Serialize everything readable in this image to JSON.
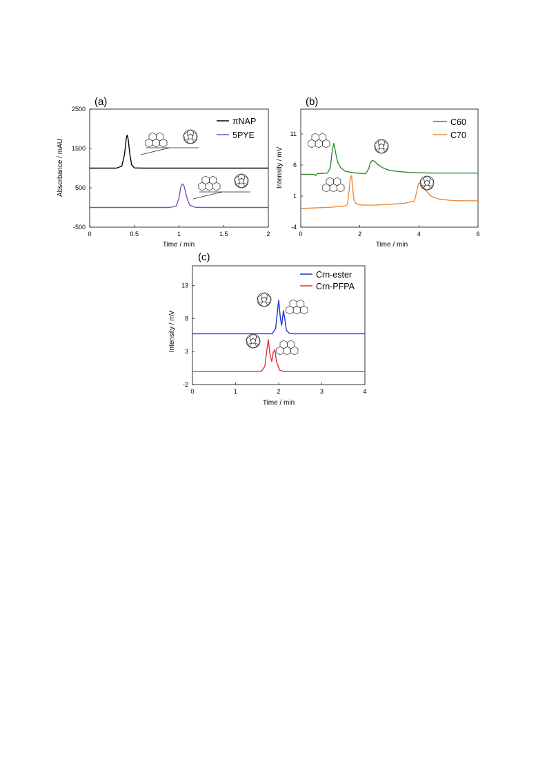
{
  "chart_data": [
    {
      "id": "a",
      "type": "line",
      "panel_label": "(a)",
      "xlabel": "Time / min",
      "ylabel": "Absorbance / mAU",
      "xlim": [
        0,
        2
      ],
      "ylim": [
        -500,
        2500
      ],
      "x_ticks": [
        0,
        0.5,
        1,
        1.5,
        2
      ],
      "y_ticks": [
        -500,
        500,
        1500,
        2500
      ],
      "legend_position": "top-right",
      "grid": false,
      "series": [
        {
          "name": "πNAP",
          "color": "#000000",
          "x": [
            0,
            0.3,
            0.36,
            0.39,
            0.41,
            0.42,
            0.43,
            0.45,
            0.47,
            0.5,
            0.6,
            2.0
          ],
          "y": [
            1000,
            1000,
            1050,
            1350,
            1760,
            1840,
            1750,
            1350,
            1080,
            1005,
            1000,
            1000
          ]
        },
        {
          "name": "5PYE",
          "color": "#7e4fb0",
          "x": [
            0,
            0.9,
            0.97,
            1.0,
            1.02,
            1.04,
            1.06,
            1.09,
            1.12,
            1.18,
            1.3,
            2.0
          ],
          "y": [
            0,
            0,
            40,
            250,
            530,
            600,
            520,
            230,
            60,
            5,
            0,
            0
          ]
        }
      ]
    },
    {
      "id": "b",
      "type": "line",
      "panel_label": "(b)",
      "xlabel": "Time / min",
      "ylabel": "Intensity / mV",
      "xlim": [
        0,
        6
      ],
      "ylim": [
        -4,
        15
      ],
      "x_ticks": [
        0,
        2,
        4,
        6
      ],
      "y_ticks": [
        -4,
        1,
        6,
        11
      ],
      "legend_position": "top-right",
      "grid": false,
      "series": [
        {
          "name": "C60",
          "color": "#2e8b2e",
          "x": [
            0,
            0.45,
            0.5,
            0.55,
            0.9,
            1.0,
            1.07,
            1.12,
            1.18,
            1.25,
            1.35,
            1.5,
            1.8,
            2.2,
            2.3,
            2.35,
            2.42,
            2.5,
            2.6,
            2.8,
            3.0,
            3.3,
            3.7,
            4.5,
            6.0
          ],
          "y": [
            4.5,
            4.5,
            4.3,
            4.6,
            4.7,
            5.5,
            8.5,
            9.5,
            8.0,
            6.5,
            5.6,
            5.0,
            4.75,
            4.6,
            5.4,
            6.3,
            6.75,
            6.6,
            6.1,
            5.5,
            5.15,
            4.95,
            4.8,
            4.7,
            4.7
          ]
        },
        {
          "name": "C70",
          "color": "#e98a3c",
          "x": [
            0,
            1.0,
            1.5,
            1.58,
            1.64,
            1.68,
            1.72,
            1.75,
            1.8,
            1.85,
            1.95,
            2.1,
            2.5,
            3.0,
            3.5,
            3.85,
            3.93,
            3.98,
            4.05,
            4.2,
            4.4,
            4.7,
            5.1,
            5.5,
            6.0
          ],
          "y": [
            -1.0,
            -0.8,
            -0.6,
            -0.3,
            2.0,
            4.1,
            4.3,
            2.5,
            0.5,
            -0.1,
            -0.35,
            -0.45,
            -0.45,
            -0.35,
            -0.15,
            0.2,
            1.8,
            3.0,
            3.1,
            2.1,
            1.0,
            0.5,
            0.3,
            0.25,
            0.25
          ]
        }
      ]
    },
    {
      "id": "c",
      "type": "line",
      "panel_label": "(c)",
      "xlabel": "Time / min",
      "ylabel": "Intensity / mV",
      "xlim": [
        0,
        4
      ],
      "ylim": [
        -2,
        16
      ],
      "x_ticks": [
        0,
        1,
        2,
        3,
        4
      ],
      "y_ticks": [
        -2,
        3,
        8,
        13
      ],
      "legend_position": "top-right",
      "grid": false,
      "series": [
        {
          "name": "Crn-ester",
          "color": "#1f2fd6",
          "x": [
            0,
            1.85,
            1.93,
            1.97,
            2.0,
            2.04,
            2.07,
            2.11,
            2.14,
            2.18,
            2.25,
            2.35,
            4.0
          ],
          "y": [
            5.7,
            5.7,
            6.5,
            9.0,
            10.8,
            8.0,
            7.0,
            9.2,
            8.0,
            6.2,
            5.75,
            5.7,
            5.7
          ]
        },
        {
          "name": "Crn-PFPA",
          "color": "#e03030",
          "x": [
            0,
            1.6,
            1.68,
            1.72,
            1.76,
            1.8,
            1.84,
            1.87,
            1.91,
            1.95,
            2.02,
            2.1,
            4.0
          ],
          "y": [
            0,
            0,
            0.8,
            3.0,
            4.8,
            2.5,
            1.5,
            2.8,
            3.3,
            1.5,
            0.2,
            0,
            0
          ]
        }
      ]
    }
  ]
}
